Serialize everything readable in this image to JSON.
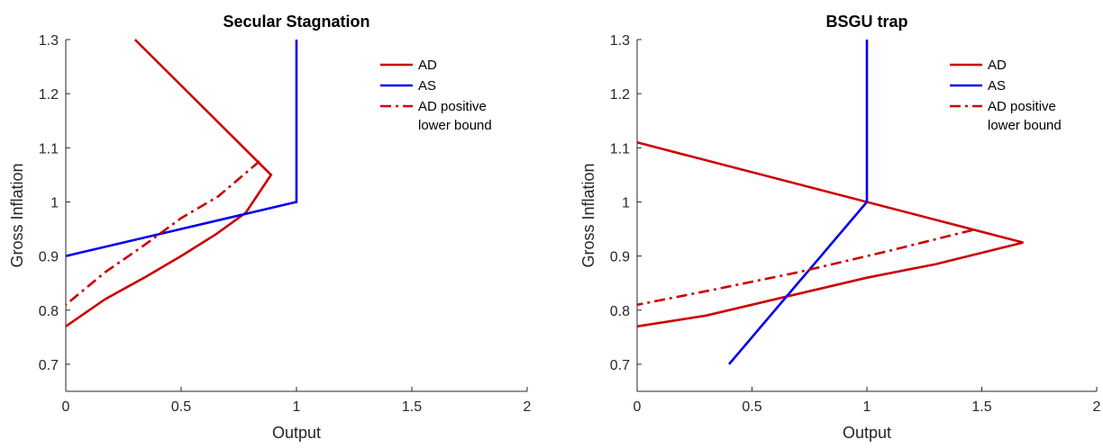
{
  "chart_data": [
    {
      "type": "line",
      "title": "Secular Stagnation",
      "xlabel": "Output",
      "ylabel": "Gross Inflation",
      "xlim": [
        0,
        2
      ],
      "ylim": [
        0.65,
        1.3
      ],
      "xticks": [
        0,
        0.5,
        1,
        1.5,
        2
      ],
      "xtick_labels": [
        "0",
        "0.5",
        "1",
        "1.5",
        "2"
      ],
      "yticks": [
        0.7,
        0.8,
        0.9,
        1.0,
        1.1,
        1.2,
        1.3
      ],
      "ytick_labels": [
        "0.7",
        "0.8",
        "0.9",
        "1",
        "1.1",
        "1.2",
        "1.3"
      ],
      "grid": false,
      "legend": "top-right",
      "series": [
        {
          "name": "AD",
          "color": "#cc0000",
          "style": "solid",
          "x": [
            0.3,
            0.89,
            0.78,
            0.65,
            0.5,
            0.34,
            0.17,
            0.0
          ],
          "y": [
            1.3,
            1.05,
            0.98,
            0.94,
            0.9,
            0.86,
            0.82,
            0.77
          ]
        },
        {
          "name": "AS",
          "color": "#0000ee",
          "style": "solid",
          "x": [
            0.0,
            1.0,
            1.0
          ],
          "y": [
            0.9,
            1.0,
            1.3
          ]
        },
        {
          "name": "AD  positive\nlower bound",
          "color": "#cc0000",
          "style": "dashdot",
          "x": [
            0.84,
            0.66,
            0.5,
            0.34,
            0.17,
            0.0
          ],
          "y": [
            1.075,
            1.01,
            0.97,
            0.92,
            0.87,
            0.81
          ]
        }
      ]
    },
    {
      "type": "line",
      "title": "BSGU trap",
      "xlabel": "Output",
      "ylabel": "Gross Inflation",
      "xlim": [
        0,
        2
      ],
      "ylim": [
        0.65,
        1.3
      ],
      "xticks": [
        0,
        0.5,
        1,
        1.5,
        2
      ],
      "xtick_labels": [
        "0",
        "0.5",
        "1",
        "1.5",
        "2"
      ],
      "yticks": [
        0.7,
        0.8,
        0.9,
        1.0,
        1.1,
        1.2,
        1.3
      ],
      "ytick_labels": [
        "0.7",
        "0.8",
        "0.9",
        "1",
        "1.1",
        "1.2",
        "1.3"
      ],
      "grid": false,
      "legend": "top-right",
      "series": [
        {
          "name": "AD",
          "color": "#cc0000",
          "style": "solid",
          "x": [
            0.0,
            1.68,
            1.3,
            1.0,
            0.6,
            0.3,
            0.0
          ],
          "y": [
            1.11,
            0.925,
            0.885,
            0.86,
            0.82,
            0.79,
            0.77
          ]
        },
        {
          "name": "AS",
          "color": "#0000ee",
          "style": "solid",
          "x": [
            0.4,
            1.0,
            1.0
          ],
          "y": [
            0.7,
            1.0,
            1.3
          ]
        },
        {
          "name": "AD  positive\nlower bound",
          "color": "#cc0000",
          "style": "dashdot",
          "x": [
            1.46,
            1.1,
            0.7,
            0.3,
            0.0
          ],
          "y": [
            0.948,
            0.91,
            0.87,
            0.835,
            0.81
          ]
        }
      ]
    }
  ]
}
